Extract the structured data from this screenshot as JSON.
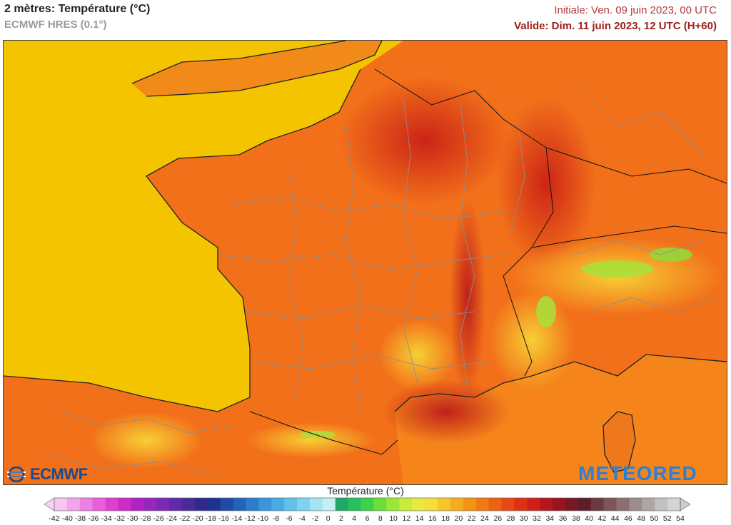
{
  "header": {
    "title": "2 mètres: Température (°C)",
    "model": "ECMWF HRES (0.1°)",
    "initial": "Initiale: Ven. 09 juin 2023, 00 UTC",
    "valid": "Valide: Dim. 11 juin 2023, 12 UTC (H+60)"
  },
  "logos": {
    "left": "ECMWF",
    "right": "METEORED"
  },
  "legend": {
    "title": "Température (°C)",
    "ticks": [
      -42,
      -40,
      -38,
      -36,
      -34,
      -32,
      -30,
      -28,
      -26,
      -24,
      -22,
      -20,
      -18,
      -16,
      -14,
      -12,
      -10,
      -8,
      -6,
      -4,
      -2,
      0,
      2,
      4,
      6,
      8,
      10,
      12,
      14,
      16,
      18,
      20,
      22,
      24,
      26,
      28,
      30,
      32,
      34,
      36,
      38,
      40,
      42,
      44,
      46,
      48,
      50,
      52,
      54
    ],
    "colors": [
      "#f7c6f2",
      "#f3a4ec",
      "#ee7fe3",
      "#e95ed9",
      "#de3fd1",
      "#cc2dc9",
      "#b023c2",
      "#9627bd",
      "#7c2ab5",
      "#622aa8",
      "#4a2a99",
      "#2f2a8a",
      "#1e338f",
      "#1f4aa6",
      "#2263bb",
      "#2e7ccc",
      "#3a95da",
      "#4aabe4",
      "#62c0ea",
      "#80d2ee",
      "#a3e3f2",
      "#c4f0f5",
      "#1fa86a",
      "#27c05c",
      "#3fd14a",
      "#6adf3a",
      "#9be638",
      "#c8ec3c",
      "#e8ea42",
      "#f6dd3a",
      "#f7c62a",
      "#f5ad1f",
      "#f49415",
      "#f27a12",
      "#ee6012",
      "#e94714",
      "#df3115",
      "#cf2018",
      "#b5171b",
      "#971520",
      "#7a1724",
      "#5e1d28",
      "#6a3a40",
      "#7b5558",
      "#8c7070",
      "#9e8b8b",
      "#b0a5a5",
      "#c2c0c0",
      "#d4d4d4"
    ],
    "under_color": "#fbd2f5",
    "over_color": "#cccccc"
  },
  "map_colors": {
    "sea_atlantic": "#f5c400",
    "sea_mediterranean": "#f5851a",
    "land_base": "#f2701a",
    "land_hot": "#e23a14",
    "land_very_hot": "#c41d16",
    "mountain_cool": "#f7d032",
    "mountain_cold": "#a6e23a",
    "borders": "#8e8e8e",
    "coast": "#222222"
  }
}
